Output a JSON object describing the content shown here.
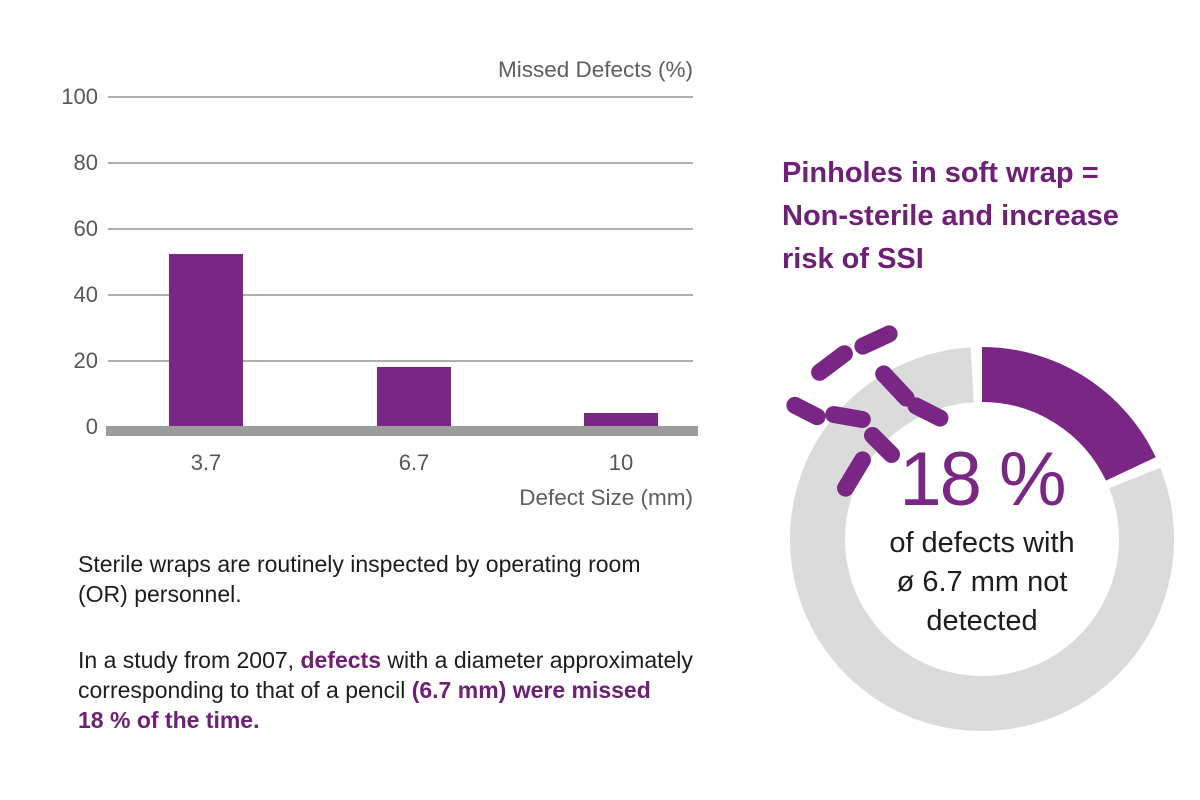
{
  "colors": {
    "accent_purple": "#7A2685",
    "heading_purple": "#6E2077",
    "ring_gray": "#DBDBDB",
    "baseline_gray": "#9C9C9C",
    "gridline_gray": "#AFAFAF",
    "axis_text_gray": "#5E5E5E",
    "body_text": "#1D1D1B"
  },
  "chart_data": [
    {
      "type": "bar",
      "title": "Missed Defects (%)",
      "xlabel": "Defect Size (mm)",
      "ylabel": "Missed Defects (%)",
      "categories": [
        "3.7",
        "6.7",
        "10"
      ],
      "values": [
        52,
        18,
        4
      ],
      "ylim": [
        0,
        100
      ],
      "yticks": [
        0,
        20,
        40,
        60,
        80,
        100
      ],
      "grid": true,
      "legend": "none",
      "bar_color": "#7A2685"
    },
    {
      "type": "pie",
      "subtype": "donut",
      "labels": [
        "not detected",
        "detected"
      ],
      "values": [
        18,
        82
      ],
      "colors": [
        "#7A2685",
        "#DBDBDB"
      ],
      "start_angle_deg": 0,
      "center_value": "18 %",
      "center_caption": "of defects with\nø 6.7 mm not\ndetected"
    }
  ],
  "left_panel": {
    "paragraphs": [
      {
        "lines": [
          [
            {
              "t": "Sterile wraps are routinely inspected by operating room"
            }
          ],
          [
            {
              "t": "(OR) personnel."
            }
          ]
        ]
      },
      {
        "lines": [
          [
            {
              "t": "In a study from 2007, "
            },
            {
              "t": "defects",
              "accent": true
            },
            {
              "t": " with a diameter approximately"
            }
          ],
          [
            {
              "t": "corresponding to that of a pencil "
            },
            {
              "t": "(6.7 mm) were missed",
              "accent": true
            }
          ],
          [
            {
              "t": "18 % of the time.",
              "accent": true
            }
          ]
        ]
      }
    ]
  },
  "right_panel": {
    "heading": "Pinholes in soft wrap =\nNon-sterile and increase\nrisk of SSI",
    "icon": "bacteria-icon"
  }
}
